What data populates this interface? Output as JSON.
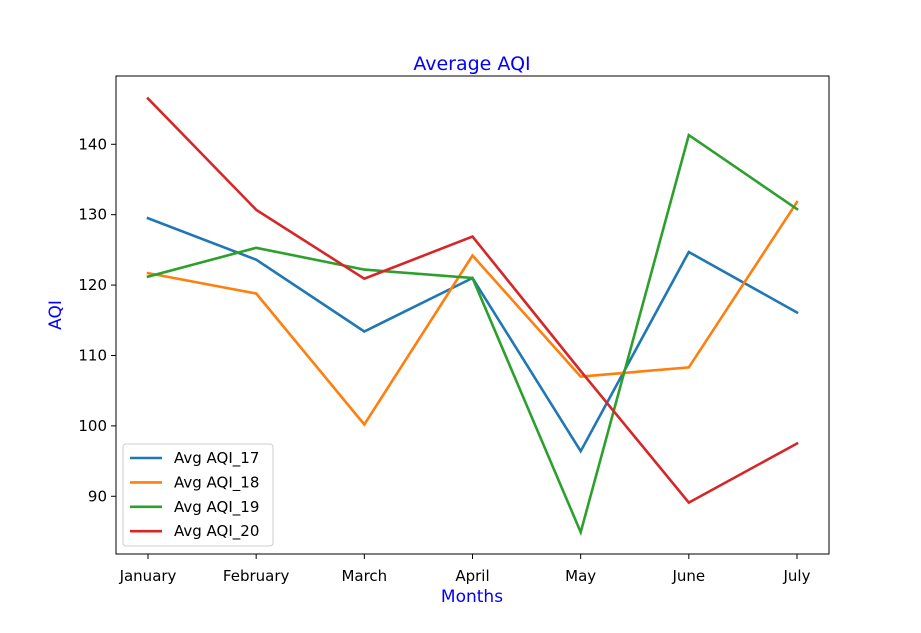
{
  "chart_data": {
    "type": "line",
    "title": "Average AQI",
    "xlabel": "Months",
    "ylabel": "AQI",
    "label_color": "#0000ff",
    "categories": [
      "January",
      "February",
      "March",
      "April",
      "May",
      "June",
      "July"
    ],
    "ylim": [
      81.8,
      149.7
    ],
    "yticks": [
      90,
      100,
      110,
      120,
      130,
      140
    ],
    "grid": false,
    "legend_position": "lower-left",
    "series": [
      {
        "name": "Avg AQI_17",
        "color": "#1f77b4",
        "values": [
          129.5,
          123.6,
          113.4,
          121.0,
          96.4,
          124.7,
          116.1
        ]
      },
      {
        "name": "Avg AQI_18",
        "color": "#ff7f0e",
        "values": [
          121.7,
          118.8,
          100.2,
          124.2,
          107.0,
          108.3,
          131.8
        ]
      },
      {
        "name": "Avg AQI_19",
        "color": "#2ca02c",
        "values": [
          121.2,
          125.3,
          122.2,
          121.0,
          84.9,
          141.3,
          130.8
        ]
      },
      {
        "name": "Avg AQI_20",
        "color": "#d62728",
        "values": [
          146.5,
          130.7,
          120.9,
          126.9,
          107.8,
          89.1,
          97.5
        ]
      }
    ]
  }
}
